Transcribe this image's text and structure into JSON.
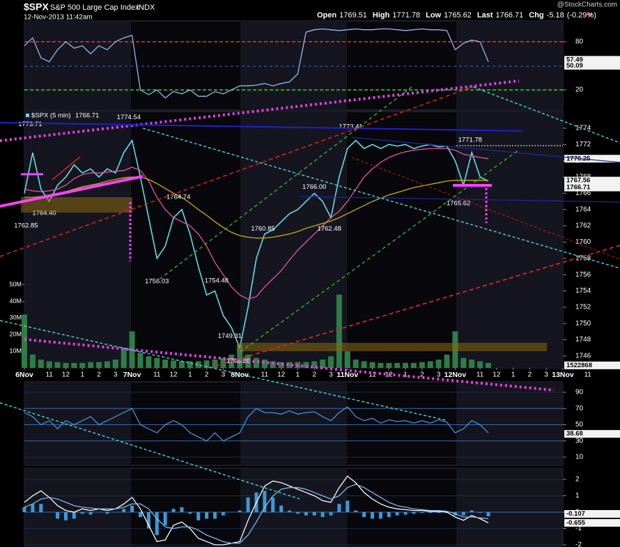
{
  "header": {
    "symbol": "$SPX",
    "name": "S&P 500 Large Cap Index",
    "exchange": "INDX",
    "date": "12-Nov-2013 11:42am",
    "watermark": "@StockCharts.com",
    "quote": [
      {
        "label": "Open",
        "value": 1769.51
      },
      {
        "label": "High",
        "value": 1771.78
      },
      {
        "label": "Low",
        "value": 1765.62
      },
      {
        "label": "Last",
        "value": 1766.71
      },
      {
        "label": "Chg",
        "value": -5.18,
        "pct_label": "(-0.29%)"
      }
    ]
  },
  "chart_data": [
    {
      "type": "line",
      "x": [
        0,
        0.5,
        1,
        1.5,
        2,
        2.5,
        3,
        3.5,
        4,
        4.5,
        5,
        5.5,
        6,
        6.5,
        7,
        7.5,
        8,
        8.5,
        9,
        9.5,
        10,
        10.5,
        11,
        11.5,
        12,
        12.5,
        13,
        13.5,
        14,
        14.5,
        15,
        15.5,
        16,
        16.5,
        17,
        17.5,
        18,
        18.5,
        19,
        19.5,
        20,
        20.5,
        21,
        21.5,
        22,
        22.5,
        23,
        23.5,
        24,
        24.5,
        25,
        25.5,
        26,
        26.5,
        27,
        27.5,
        28
      ],
      "series": [
        {
          "color": "#8fbcf0",
          "values": [
            75,
            85,
            60,
            55,
            70,
            80,
            72,
            75,
            65,
            75,
            70,
            80,
            85,
            88,
            20,
            14,
            20,
            10,
            18,
            15,
            20,
            12,
            12,
            18,
            15,
            20,
            25,
            25,
            26,
            28,
            25,
            28,
            30,
            40,
            92,
            95,
            96,
            95,
            94,
            95,
            96,
            95,
            95,
            96,
            96,
            95,
            94,
            95,
            96,
            95,
            95,
            94,
            70,
            78,
            82,
            80,
            55
          ]
        }
      ],
      "xlim": [
        0,
        32.5
      ],
      "ylim": [
        -5.2,
        106
      ],
      "yticks": [
        20,
        80
      ],
      "tick_colors": [
        "#22dd22",
        "#ff2a2a"
      ],
      "tags": [
        57.49,
        50.09
      ]
    },
    {
      "type": "line",
      "x": [
        0,
        0.5,
        1,
        1.5,
        2,
        2.5,
        3,
        3.5,
        4,
        4.5,
        5,
        5.5,
        6,
        6.5,
        7,
        7.5,
        8,
        8.5,
        9,
        9.5,
        10,
        10.5,
        11,
        11.5,
        12,
        12.5,
        13,
        13.5,
        14,
        14.5,
        15,
        15.5,
        16,
        16.5,
        17,
        17.5,
        18,
        18.5,
        19,
        19.5,
        20,
        20.5,
        21,
        21.5,
        22,
        22.5,
        23,
        23.5,
        24,
        24.5,
        25,
        25.5,
        26,
        26.5,
        27,
        27.5,
        28
      ],
      "series": [
        {
          "name": "$SPX (5 min)",
          "color": "#5ee0e8",
          "values": [
            1766,
            1771,
            1766.5,
            1765,
            1767,
            1768,
            1769.5,
            1768.5,
            1769,
            1768,
            1769,
            1768.5,
            1771,
            1772.5,
            1768,
            1763,
            1758,
            1759.5,
            1763,
            1764,
            1761,
            1757,
            1753.5,
            1754,
            1751,
            1749.5,
            1747,
            1752,
            1758,
            1761,
            1761.5,
            1762.5,
            1763.5,
            1764,
            1765,
            1766,
            1765,
            1763,
            1768,
            1771.5,
            1772.5,
            1771.5,
            1772,
            1771.5,
            1772,
            1771.8,
            1772,
            1771.5,
            1771.8,
            1772,
            1771.7,
            1771.8,
            1770,
            1767,
            1771,
            1768,
            1767.5
          ]
        },
        {
          "color": "#e8559f",
          "values": [
            1766.5,
            1766.3,
            1766.2,
            1766.3,
            1766.5,
            1767,
            1767.8,
            1768.3,
            1768.5,
            1768.5,
            1768.6,
            1768.7,
            1768.8,
            1769.2,
            1768.8,
            1767.5,
            1765.5,
            1764,
            1763,
            1762.5,
            1762,
            1761,
            1759.5,
            1757.5,
            1756,
            1754.5,
            1753.5,
            1753,
            1753.3,
            1754.5,
            1755.5,
            1756.5,
            1757.8,
            1759,
            1760,
            1761,
            1762,
            1763,
            1763.8,
            1765,
            1766.5,
            1768,
            1769,
            1769.8,
            1770.4,
            1770.8,
            1771.1,
            1771.3,
            1771.4,
            1771.5,
            1771.5,
            1771.5,
            1771.3,
            1770.8,
            1770.6,
            1770.4,
            1770.25
          ]
        },
        {
          "color": "#c8b400",
          "values": [
            1765.5,
            1765.5,
            1765.6,
            1765.8,
            1766,
            1766.2,
            1766.5,
            1766.8,
            1767,
            1767.2,
            1767.5,
            1767.7,
            1767.9,
            1768,
            1768,
            1767.7,
            1767.2,
            1766.6,
            1766,
            1765.5,
            1764.8,
            1764,
            1763.3,
            1762.5,
            1761.8,
            1761.2,
            1760.8,
            1760.6,
            1760.5,
            1760.5,
            1760.6,
            1760.8,
            1761,
            1761.3,
            1761.7,
            1762,
            1762.3,
            1762.6,
            1763,
            1763.5,
            1764,
            1764.5,
            1765,
            1765.4,
            1765.8,
            1766.1,
            1766.4,
            1766.7,
            1766.9,
            1767.1,
            1767.3,
            1767.5,
            1767.6,
            1767.6,
            1767.6,
            1767.6,
            1767.56
          ]
        },
        {
          "type": "bar",
          "axis": "y2",
          "color": "#2e7d46",
          "values": [
            32000000,
            8000000,
            5000000,
            4000000,
            3500000,
            3000000,
            3000000,
            3000000,
            3500000,
            3500000,
            4000000,
            5000000,
            12000000,
            22000000,
            9000000,
            7000000,
            6000000,
            5000000,
            4500000,
            4000000,
            4000000,
            4000000,
            4500000,
            5000000,
            6000000,
            8000000,
            14000000,
            8000000,
            6000000,
            5000000,
            4000000,
            3500000,
            3500000,
            3500000,
            3500000,
            4000000,
            5000000,
            7000000,
            44000000,
            10000000,
            5000000,
            4000000,
            3500000,
            3000000,
            3000000,
            3000000,
            3000000,
            3000000,
            3500000,
            4000000,
            5000000,
            8000000,
            22000000,
            6000000,
            5000000,
            4000000,
            3000000
          ]
        }
      ],
      "last": 1766.71,
      "xlim": [
        0,
        32.5
      ],
      "ylim": [
        1744.54,
        1776.05
      ],
      "yticks": [
        1746,
        1748,
        1750,
        1752,
        1754,
        1756,
        1758,
        1760,
        1762,
        1764,
        1766,
        1768,
        1770,
        1772,
        1774
      ],
      "y2lim": [
        0,
        154000000
      ],
      "y2ticks": [
        {
          "value": 10000000,
          "label": "10M"
        },
        {
          "value": 20000000,
          "label": "20M"
        },
        {
          "value": 30000000,
          "label": "30M"
        },
        {
          "value": 40000000,
          "label": "40M"
        },
        {
          "value": 50000000,
          "label": "50M"
        }
      ],
      "xticks": [
        {
          "value": 0,
          "label": "6Nov"
        },
        {
          "value": 1.5,
          "label": "11"
        },
        {
          "value": 2.5,
          "label": "12"
        },
        {
          "value": 3.5,
          "label": "1"
        },
        {
          "value": 4.5,
          "label": "2"
        },
        {
          "value": 5.5,
          "label": "3"
        },
        {
          "value": 6.5,
          "label": "7Nov"
        },
        {
          "value": 8,
          "label": "11"
        },
        {
          "value": 9,
          "label": "12"
        },
        {
          "value": 10,
          "label": "1"
        },
        {
          "value": 11,
          "label": "2"
        },
        {
          "value": 12,
          "label": "3"
        },
        {
          "value": 13,
          "label": "8Nov"
        },
        {
          "value": 14.5,
          "label": "11"
        },
        {
          "value": 15.5,
          "label": "12"
        },
        {
          "value": 16.5,
          "label": "1"
        },
        {
          "value": 17.5,
          "label": "2"
        },
        {
          "value": 18.5,
          "label": "3"
        },
        {
          "value": 19.5,
          "label": "11Nov"
        },
        {
          "value": 21,
          "label": "11"
        },
        {
          "value": 22,
          "label": "12"
        },
        {
          "value": 23,
          "label": "1"
        },
        {
          "value": 24,
          "label": "2"
        },
        {
          "value": 25,
          "label": "3"
        },
        {
          "value": 26,
          "label": "12Nov"
        },
        {
          "value": 27.5,
          "label": "11"
        },
        {
          "value": 28.5,
          "label": "12"
        },
        {
          "value": 29.5,
          "label": "1"
        },
        {
          "value": 30.5,
          "label": "2"
        },
        {
          "value": 31.5,
          "label": "3"
        },
        {
          "value": 32.5,
          "label": "13Nov"
        },
        {
          "value": 34,
          "label": "11"
        }
      ],
      "annotations": [
        {
          "x": 0.35,
          "value": 1773.71
        },
        {
          "x": 0.1,
          "value": 1762.85
        },
        {
          "x": 1.2,
          "value": 1764.4,
          "label": "1764.40"
        },
        {
          "x": 6.3,
          "value": 1774.54
        },
        {
          "x": 9.3,
          "value": 1764.74
        },
        {
          "x": 8.0,
          "value": 1756.03
        },
        {
          "x": 11.6,
          "value": 1754.48
        },
        {
          "x": 12.4,
          "value": 1749.31
        },
        {
          "x": 12.9,
          "value": 1746.2,
          "label": "1746.20"
        },
        {
          "x": 14.4,
          "value": 1760.85
        },
        {
          "x": 17.5,
          "value": 1766,
          "label": "1766.00"
        },
        {
          "x": 18.4,
          "value": 1762.48
        },
        {
          "x": 19.7,
          "value": 1773.41
        },
        {
          "x": 26.9,
          "value": 1771.78
        },
        {
          "x": 26.2,
          "value": 1765.62
        }
      ],
      "tags": [
        1770.25,
        1767.56,
        1766.71
      ],
      "y2_tags": [
        1522868
      ]
    },
    {
      "type": "line",
      "x": [
        0,
        0.5,
        1,
        1.5,
        2,
        2.5,
        3,
        3.5,
        4,
        4.5,
        5,
        5.5,
        6,
        6.5,
        7,
        7.5,
        8,
        8.5,
        9,
        9.5,
        10,
        10.5,
        11,
        11.5,
        12,
        12.5,
        13,
        13.5,
        14,
        14.5,
        15,
        15.5,
        16,
        16.5,
        17,
        17.5,
        18,
        18.5,
        19,
        19.5,
        20,
        20.5,
        21,
        21.5,
        22,
        22.5,
        23,
        23.5,
        24,
        24.5,
        25,
        25.5,
        26,
        26.5,
        27,
        27.5,
        28
      ],
      "series": [
        {
          "color": "#4a8fd6",
          "values": [
            65,
            60,
            50,
            55,
            45,
            55,
            50,
            55,
            60,
            50,
            55,
            60,
            65,
            70,
            50,
            45,
            40,
            50,
            55,
            50,
            40,
            35,
            30,
            40,
            30,
            35,
            40,
            60,
            70,
            65,
            65,
            63,
            67,
            63,
            65,
            66,
            60,
            55,
            65,
            72,
            60,
            55,
            58,
            52,
            56,
            54,
            55,
            52,
            55,
            52,
            56,
            53,
            40,
            45,
            55,
            50,
            40
          ]
        }
      ],
      "xlim": [
        0,
        32.5
      ],
      "ylim": [
        -0.3,
        102.9
      ],
      "yticks": [
        10,
        30,
        50,
        70,
        90
      ],
      "tick_colors": [
        "#1a2a44",
        "#3a6aa8",
        "#3a6aa8",
        "#3a6aa8",
        "#1a2a44"
      ],
      "tags": [
        38.68
      ]
    },
    {
      "type": "line",
      "x": [
        0,
        0.5,
        1,
        1.5,
        2,
        2.5,
        3,
        3.5,
        4,
        4.5,
        5,
        5.5,
        6,
        6.5,
        7,
        7.5,
        8,
        8.5,
        9,
        9.5,
        10,
        10.5,
        11,
        11.5,
        12,
        12.5,
        13,
        13.5,
        14,
        14.5,
        15,
        15.5,
        16,
        16.5,
        17,
        17.5,
        18,
        18.5,
        19,
        19.5,
        20,
        20.5,
        21,
        21.5,
        22,
        22.5,
        23,
        23.5,
        24,
        24.5,
        25,
        25.5,
        26,
        26.5,
        27,
        27.5,
        28
      ],
      "series": [
        {
          "type": "bar",
          "color": "#3a9ad9",
          "values": [
            0.3,
            0.5,
            0.5,
            0,
            -0.4,
            -0.5,
            -0.4,
            -0.1,
            -0.15,
            0,
            -0.1,
            0,
            0.2,
            0.4,
            -0.3,
            -1,
            -1.4,
            -0.8,
            0.2,
            0.3,
            -0.1,
            -0.5,
            -0.4,
            -0.4,
            -0.2,
            0,
            0.1,
            0.9,
            1.2,
            1.3,
            0.9,
            0.4,
            0.1,
            -0.1,
            -0.2,
            -0.2,
            -0.3,
            -0.2,
            0.5,
            0.7,
            0.1,
            -0.3,
            -0.4,
            -0.4,
            -0.3,
            -0.2,
            -0.15,
            -0.1,
            -0.05,
            -0.05,
            -0.05,
            -0.05,
            -0.2,
            -0.2,
            0.1,
            -0.05,
            -0.255
          ]
        },
        {
          "color": "#ffffff",
          "values": [
            0.6,
            1,
            1.3,
            0.9,
            0.4,
            0.1,
            0,
            0.2,
            0.1,
            0.2,
            0.1,
            0.2,
            0.5,
            0.9,
            0.2,
            -0.8,
            -1.8,
            -1.7,
            -0.8,
            -0.6,
            -1,
            -1.6,
            -1.8,
            -2,
            -2,
            -1.9,
            -1.8,
            -0.5,
            0.6,
            1.6,
            1.9,
            1.8,
            1.6,
            1.4,
            1.2,
            1,
            0.7,
            0.6,
            1.5,
            2.2,
            1.8,
            1.2,
            0.8,
            0.5,
            0.3,
            0.2,
            0.15,
            0.1,
            0.1,
            0.05,
            0.05,
            0,
            -0.3,
            -0.5,
            -0.2,
            -0.4,
            -0.655
          ]
        },
        {
          "color": "#7fb8ee",
          "values": [
            0.3,
            0.5,
            0.8,
            0.9,
            0.8,
            0.6,
            0.4,
            0.3,
            0.25,
            0.2,
            0.2,
            0.2,
            0.3,
            0.5,
            0.5,
            0.2,
            -0.4,
            -0.9,
            -1,
            -0.9,
            -0.9,
            -1.1,
            -1.4,
            -1.6,
            -1.8,
            -1.9,
            -1.9,
            -1.4,
            -0.6,
            0.3,
            1,
            1.4,
            1.5,
            1.5,
            1.4,
            1.2,
            1,
            0.8,
            1,
            1.5,
            1.7,
            1.5,
            1.2,
            0.9,
            0.6,
            0.4,
            0.3,
            0.2,
            0.15,
            0.1,
            0.1,
            0.05,
            -0.1,
            -0.3,
            -0.3,
            -0.35,
            -0.4
          ]
        }
      ],
      "xlim": [
        0,
        32.5
      ],
      "ylim": [
        -2.13,
        2.68
      ],
      "yticks": [
        -2,
        -1,
        0,
        1,
        2
      ],
      "tick_colors": [
        "#1a2a44",
        "#1a2a44",
        "#3a6aa8",
        "#1a2a44",
        "#1a2a44"
      ],
      "tags": [
        -0.107,
        -0.655
      ]
    }
  ]
}
